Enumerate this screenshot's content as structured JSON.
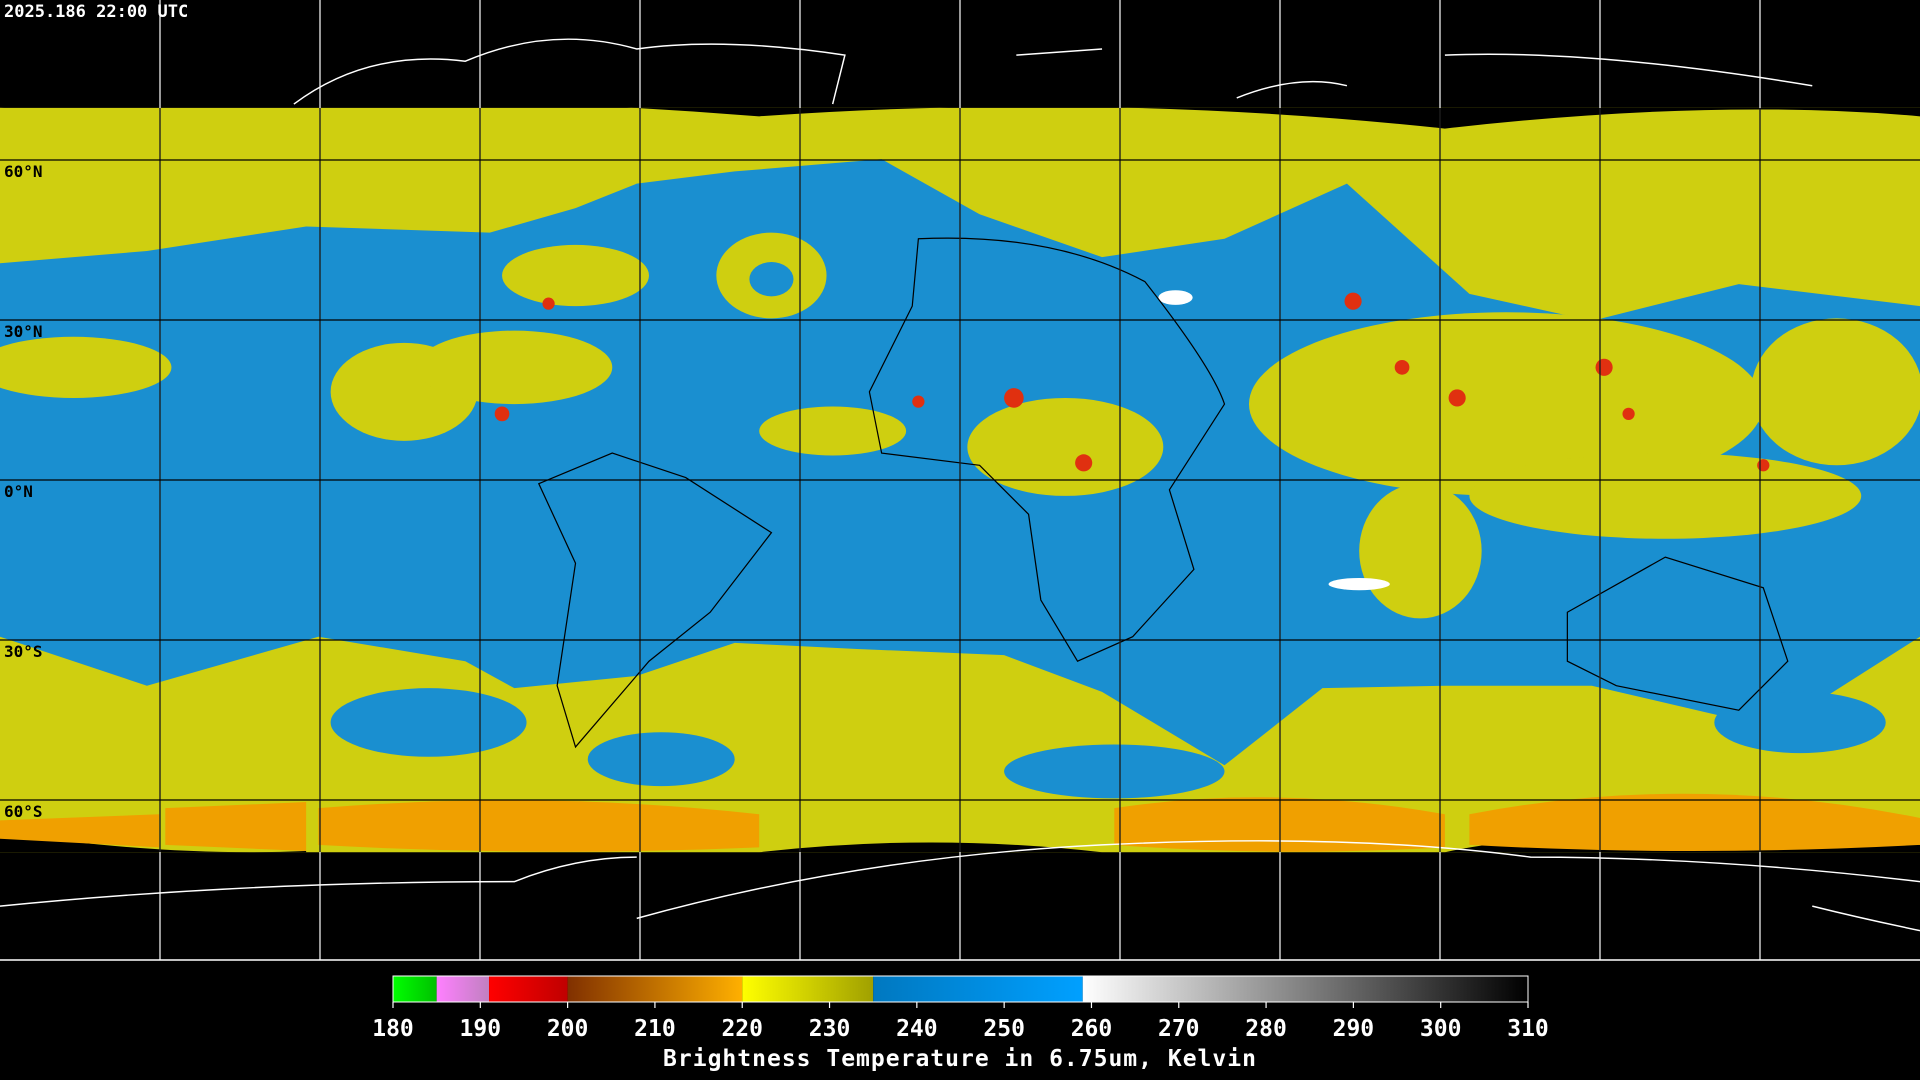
{
  "timestamp": "2025.186 22:00 UTC",
  "lat_labels": [
    "60°N",
    "30°N",
    "0°N",
    "30°S",
    "60°S"
  ],
  "colorbar": {
    "title": "Brightness Temperature in 6.75um, Kelvin",
    "range": [
      180,
      310
    ],
    "ticks": [
      180,
      190,
      200,
      210,
      220,
      230,
      240,
      250,
      260,
      270,
      280,
      290,
      300,
      310
    ],
    "segments": [
      {
        "from": 180,
        "to": 185,
        "color_start": "#00ff00",
        "color_end": "#00c000"
      },
      {
        "from": 185,
        "to": 191,
        "color_start": "#ff80ff",
        "color_end": "#c080c0"
      },
      {
        "from": 191,
        "to": 200,
        "color_start": "#ff0000",
        "color_end": "#c00000"
      },
      {
        "from": 200,
        "to": 220,
        "color_start": "#803000",
        "color_end": "#ffb000"
      },
      {
        "from": 220,
        "to": 235,
        "color_start": "#ffff00",
        "color_end": "#a0a000"
      },
      {
        "from": 235,
        "to": 259,
        "color_start": "#0078c0",
        "color_end": "#00a0ff"
      },
      {
        "from": 259,
        "to": 310,
        "color_start": "#ffffff",
        "color_end": "#000000"
      }
    ]
  }
}
